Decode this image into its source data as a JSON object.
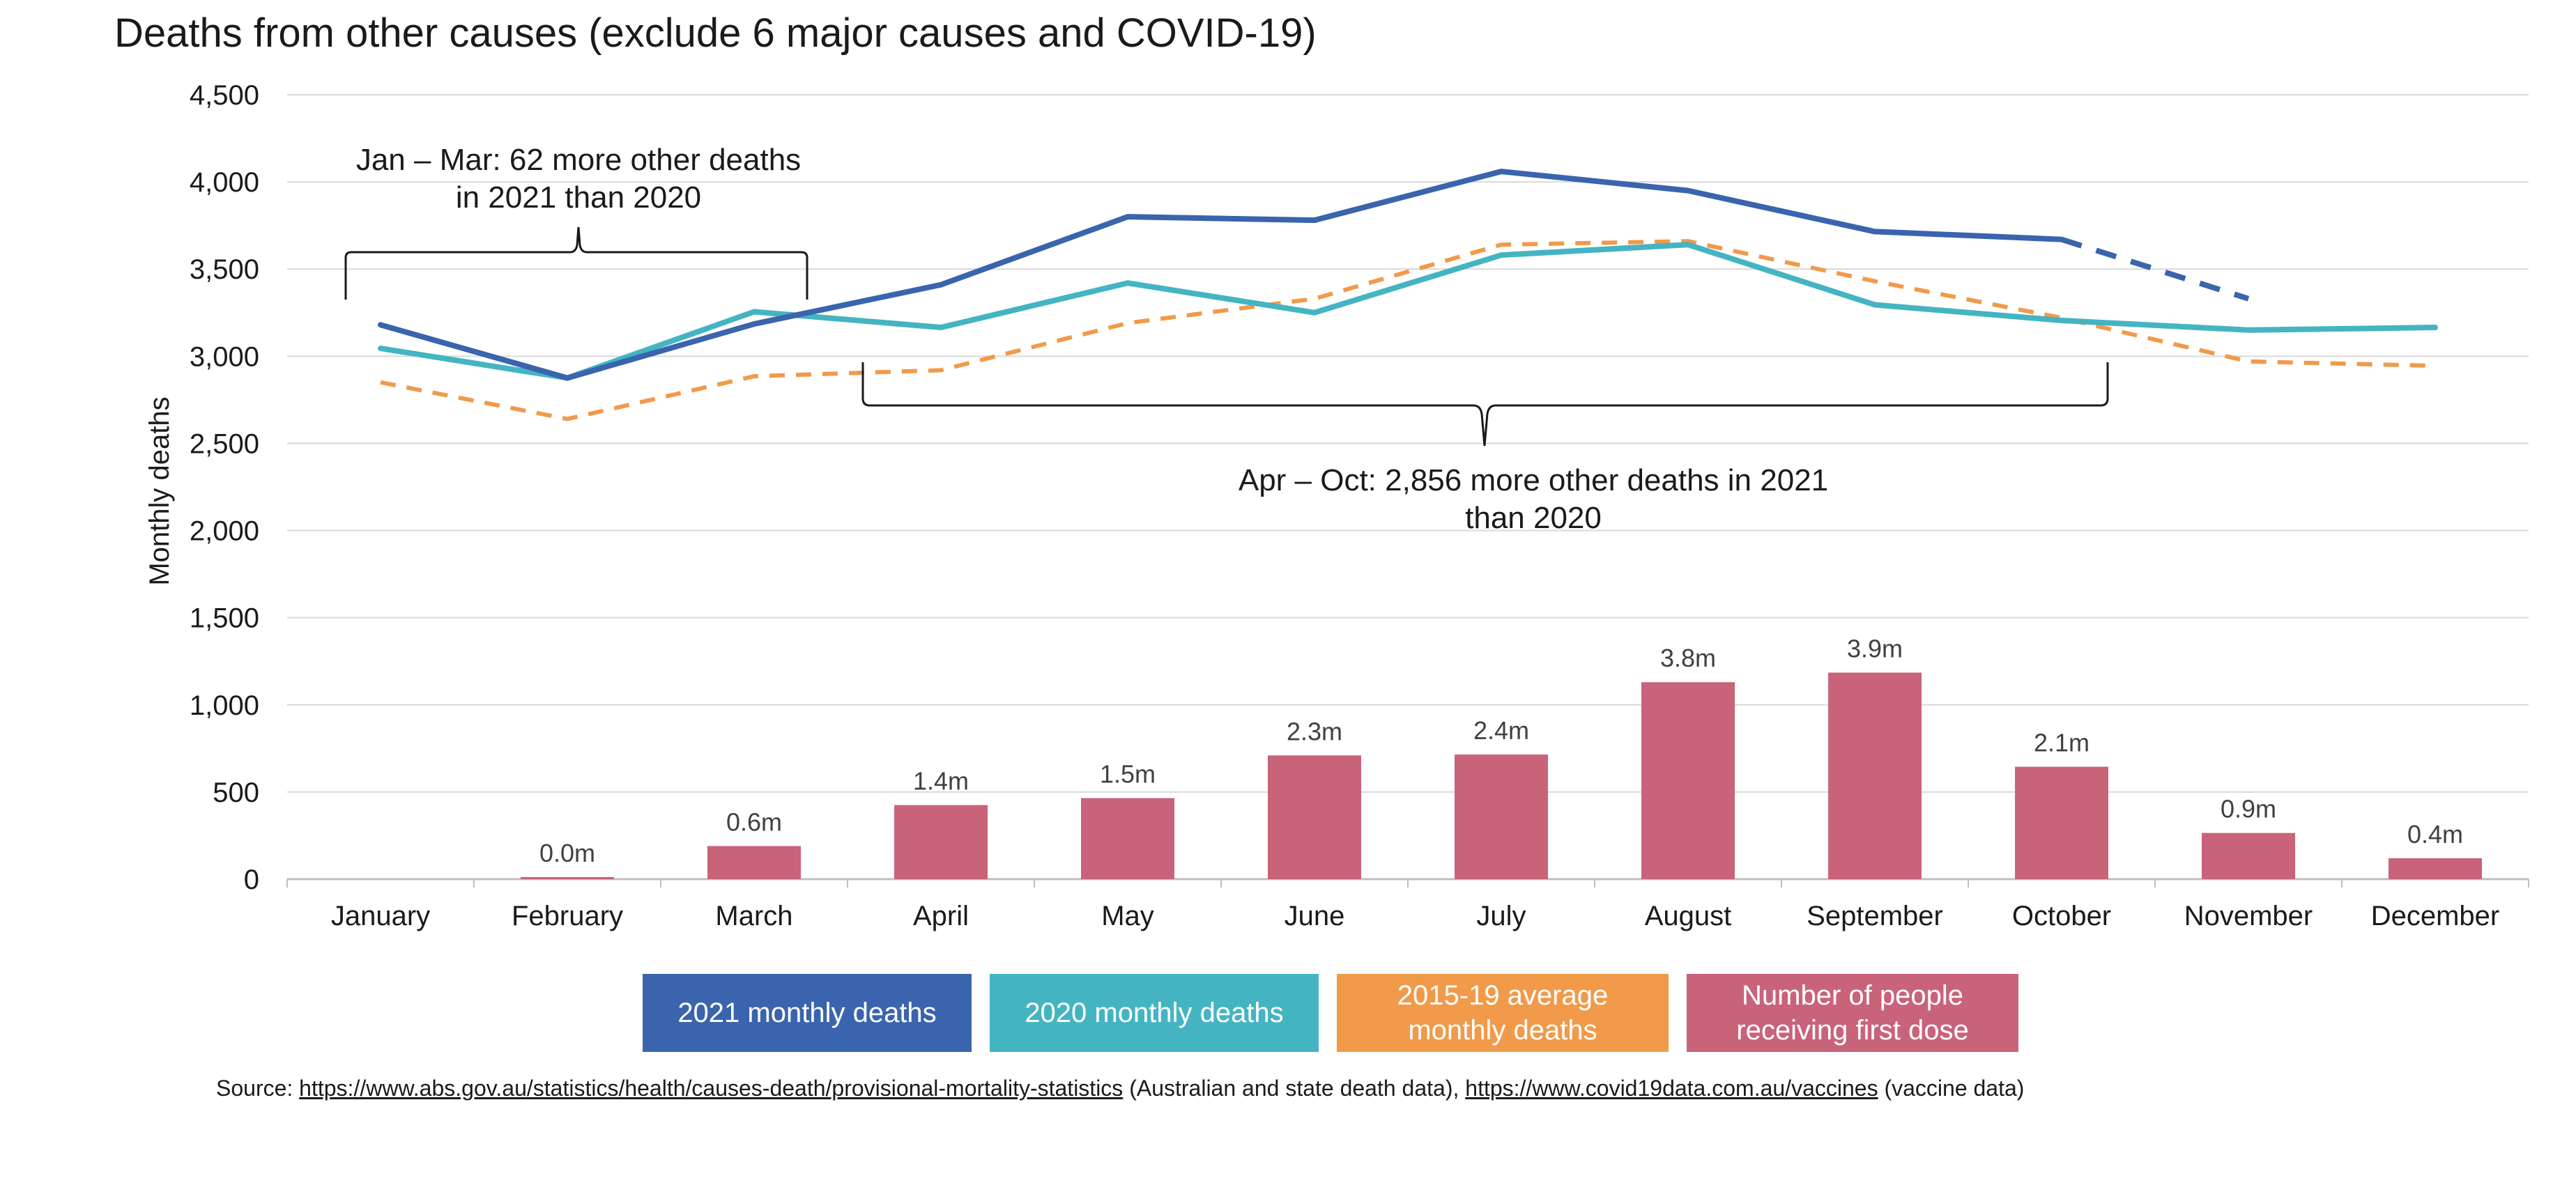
{
  "chart_data": {
    "type": "bar+line",
    "title": "Deaths from other causes (exclude 6 major causes and COVID-19)",
    "ylabel": "Monthly deaths",
    "ylim": [
      0,
      4500
    ],
    "yticks": [
      "0",
      "500",
      "1,000",
      "1,500",
      "2,000",
      "2,500",
      "3,000",
      "3,500",
      "4,000",
      "4,500"
    ],
    "grid": true,
    "legend_position": "bottom",
    "categories": [
      "January",
      "February",
      "March",
      "April",
      "May",
      "June",
      "July",
      "August",
      "September",
      "October",
      "November",
      "December"
    ],
    "series": [
      {
        "name": "2021 monthly deaths",
        "type": "line",
        "color": "#3a64ad",
        "style": "solid (dashed for November)",
        "values": [
          3180,
          2875,
          3185,
          3410,
          3800,
          3780,
          4060,
          3950,
          3715,
          3670,
          3330,
          null
        ]
      },
      {
        "name": "2020 monthly deaths",
        "type": "line",
        "color": "#45b4c2",
        "style": "solid",
        "values": [
          3045,
          2875,
          3255,
          3165,
          3420,
          3250,
          3580,
          3640,
          3295,
          3205,
          3150,
          3165
        ]
      },
      {
        "name": "2015-19 average monthly deaths",
        "type": "line",
        "color": "#f09a4a",
        "style": "dashed",
        "values": [
          2850,
          2640,
          2885,
          2920,
          3190,
          3330,
          3640,
          3660,
          3430,
          3220,
          2970,
          2945
        ]
      },
      {
        "name": "Number of people receiving first dose",
        "type": "bar",
        "color": "#c9637a",
        "values": [
          0,
          12,
          190,
          425,
          465,
          710,
          715,
          1130,
          1185,
          645,
          265,
          120
        ],
        "labels": [
          "",
          "0.0m",
          "0.6m",
          "1.4m",
          "1.5m",
          "2.3m",
          "2.4m",
          "3.8m",
          "3.9m",
          "2.1m",
          "0.9m",
          "0.4m"
        ]
      }
    ],
    "annotations": [
      {
        "text_lines": [
          "Jan – Mar: 62 more other deaths",
          "in 2021 than 2020"
        ]
      },
      {
        "text_lines": [
          "Apr – Oct: 2,856 more other deaths in 2021",
          "than 2020"
        ]
      }
    ]
  },
  "source": {
    "prefix": "Source: ",
    "link1": "https://www.abs.gov.au/statistics/health/causes-death/provisional-mortality-statistics",
    "middle": " (Australian and state death data), ",
    "link2": "https://www.covid19data.com.au/vaccines",
    "suffix": " (vaccine data)"
  },
  "legend": {
    "items": [
      {
        "label_lines": [
          "2021 monthly deaths"
        ],
        "color": "#3a64ad"
      },
      {
        "label_lines": [
          "2020 monthly deaths"
        ],
        "color": "#45b4c2"
      },
      {
        "label_lines": [
          "2015-19 average",
          "monthly deaths"
        ],
        "color": "#f09a4a"
      },
      {
        "label_lines": [
          "Number of people",
          "receiving first dose"
        ],
        "color": "#c9637a"
      }
    ]
  }
}
